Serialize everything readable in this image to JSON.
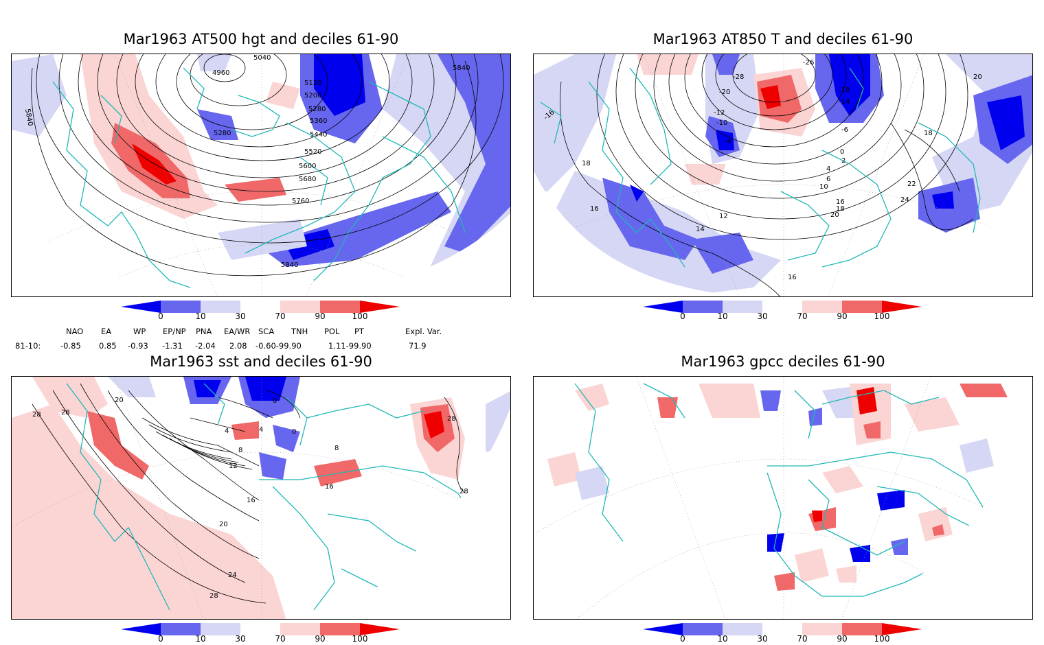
{
  "panels": [
    {
      "title": "Mar1963 AT500 hgt and deciles 61-90",
      "contour_labels": [
        "4960",
        "5040",
        "5120",
        "5200",
        "5280",
        "5280",
        "5360",
        "5440",
        "5520",
        "5600",
        "5680",
        "5760",
        "5840",
        "5840",
        "5840"
      ]
    },
    {
      "title": "Mar1963 AT850 T and deciles 61-90",
      "contour_labels": [
        "-26",
        "-28",
        "-20",
        "-18",
        "-14",
        "-12",
        "-10",
        "-6",
        "-4",
        "0",
        "2",
        "4",
        "6",
        "10",
        "12",
        "14",
        "16",
        "18",
        "20",
        "22",
        "24",
        "18",
        "16",
        "16",
        "-16",
        "18",
        "20"
      ]
    },
    {
      "title": "Mar1963 sst and deciles 61-90",
      "contour_labels": [
        "28",
        "28",
        "20",
        "0",
        "4",
        "4",
        "0",
        "8",
        "12",
        "16",
        "20",
        "24",
        "28",
        "28",
        "28",
        "16",
        "8"
      ]
    },
    {
      "title": "Mar1963 gpcc deciles 61-90",
      "contour_labels": []
    }
  ],
  "colorbar": {
    "ticks": [
      "0",
      "10",
      "30",
      "70",
      "90",
      "100"
    ],
    "colors": [
      "#0000ee",
      "#6666ee",
      "#d5d7f5",
      "#ffffff",
      "#fbd4d4",
      "#f06868",
      "#ee0000"
    ]
  },
  "indices": {
    "headers": [
      "NAO",
      "EA",
      "WP",
      "EP/NP",
      "PNA",
      "EA/WR",
      "SCA",
      "TNH",
      "POL",
      "PT",
      "Expl. Var."
    ],
    "row_label": "81-10:",
    "values": [
      "-0.85",
      "0.85",
      "-0.93",
      "-1.31",
      "-2.04",
      "2.08",
      "-0.60-99.90",
      "1.11-99.90",
      "71.9"
    ]
  },
  "colors": {
    "coastline": "#1fb8b8",
    "contour": "#000000",
    "anomaly_blue": "#6666ee",
    "anomaly_red": "#f06868"
  }
}
